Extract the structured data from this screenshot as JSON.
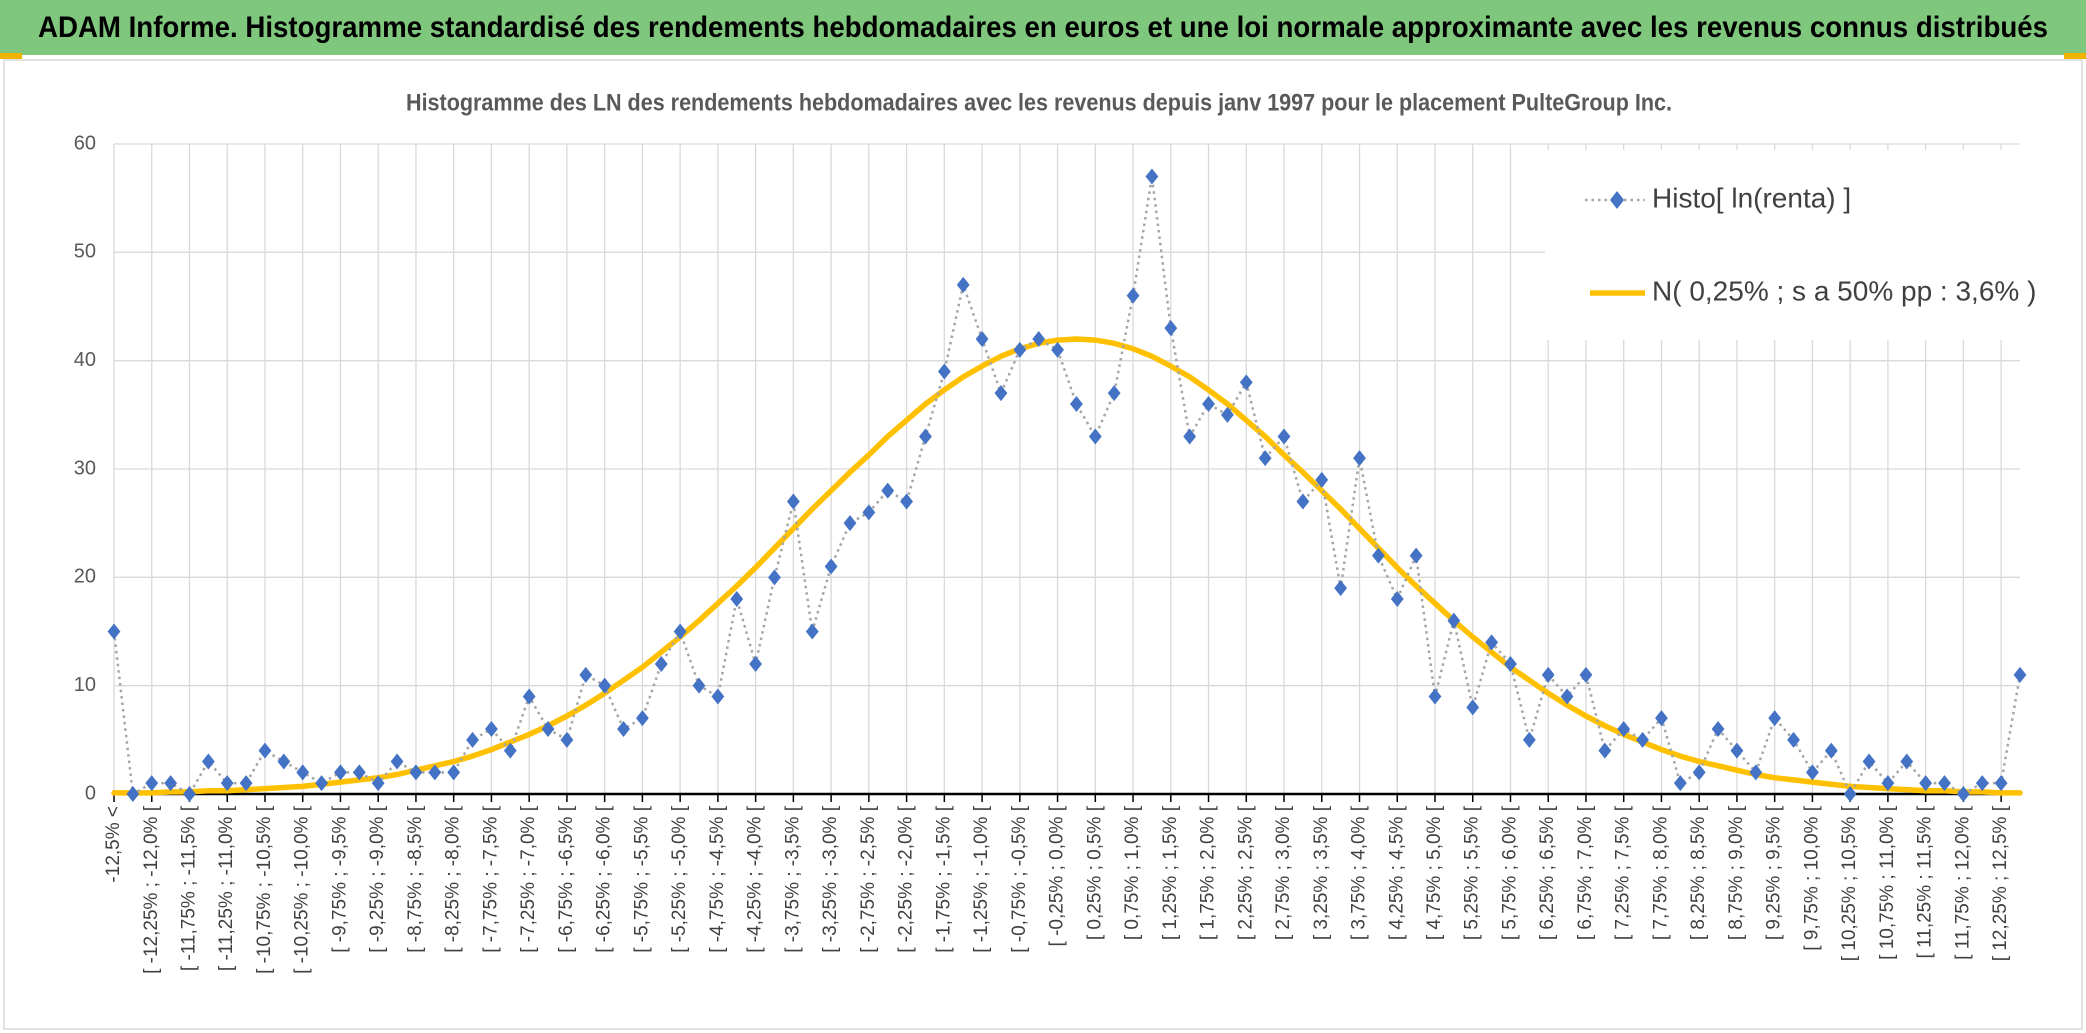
{
  "header": {
    "title": "ADAM Informe. Histogramme standardisé des rendements hebdomadaires en euros et une loi normale approximante avec les revenus connus distribués"
  },
  "chart_data": {
    "type": "line",
    "title": "Histogramme des LN des rendements hebdomadaires avec les revenus depuis janv 1997 pour le placement PulteGroup Inc.",
    "categories": [
      "-12,5% <",
      null,
      "[ -12,25% ; -12,0% [",
      null,
      "[ -11,75% ; -11,5% [",
      null,
      "[ -11,25% ; -11,0% [",
      null,
      "[ -10,75% ; -10,5% [",
      null,
      "[ -10,25% ; -10,0% [",
      null,
      "[ -9,75% ; -9,5% [",
      null,
      "[ -9,25% ; -9,0% [",
      null,
      "[ -8,75% ; -8,5% [",
      null,
      "[ -8,25% ; -8,0% [",
      null,
      "[ -7,75% ; -7,5% [",
      null,
      "[ -7,25% ; -7,0% [",
      null,
      "[ -6,75% ; -6,5% [",
      null,
      "[ -6,25% ; -6,0% [",
      null,
      "[ -5,75% ; -5,5% [",
      null,
      "[ -5,25% ; -5,0% [",
      null,
      "[ -4,75% ; -4,5% [",
      null,
      "[ -4,25% ; -4,0% [",
      null,
      "[ -3,75% ; -3,5% [",
      null,
      "[ -3,25% ; -3,0% [",
      null,
      "[ -2,75% ; -2,5% [",
      null,
      "[ -2,25% ; -2,0% [",
      null,
      "[ -1,75% ; -1,5% [",
      null,
      "[ -1,25% ; -1,0% [",
      null,
      "[ -0,75% ; -0,5% [",
      null,
      "[ -0,25% ; 0,0% [",
      null,
      "[ 0,25% ; 0,5% [",
      null,
      "[ 0,75% ; 1,0% [",
      null,
      "[ 1,25% ; 1,5% [",
      null,
      "[ 1,75% ; 2,0% [",
      null,
      "[ 2,25% ; 2,5% [",
      null,
      "[ 2,75% ; 3,0% [",
      null,
      "[ 3,25% ; 3,5% [",
      null,
      "[ 3,75% ; 4,0% [",
      null,
      "[ 4,25% ; 4,5% [",
      null,
      "[ 4,75% ; 5,0% [",
      null,
      "[ 5,25% ; 5,5% [",
      null,
      "[ 5,75% ; 6,0% [",
      null,
      "[ 6,25% ; 6,5% [",
      null,
      "[ 6,75% ; 7,0% [",
      null,
      "[ 7,25% ; 7,5% [",
      null,
      "[ 7,75% ; 8,0% [",
      null,
      "[ 8,25% ; 8,5% [",
      null,
      "[ 8,75% ; 9,0% [",
      null,
      "[ 9,25% ; 9,5% [",
      null,
      "[ 9,75% ; 10,0% [",
      null,
      "[ 10,25% ; 10,5% [",
      null,
      "[ 10,75% ; 11,0% [",
      null,
      "[ 11,25% ; 11,5% [",
      null,
      "[ 11,75% ; 12,0% [",
      null,
      "[ 12,25% ; 12,5% [",
      null
    ],
    "series": [
      {
        "name": "Histo[ ln(renta) ]",
        "color": "#4472c4",
        "marker": "diamond",
        "values": [
          15,
          0,
          1,
          1,
          0,
          3,
          1,
          1,
          4,
          3,
          2,
          1,
          2,
          2,
          1,
          3,
          2,
          2,
          2,
          5,
          6,
          4,
          9,
          6,
          5,
          11,
          10,
          6,
          7,
          12,
          15,
          10,
          9,
          18,
          12,
          20,
          27,
          15,
          21,
          25,
          26,
          28,
          27,
          33,
          39,
          47,
          42,
          37,
          41,
          42,
          41,
          36,
          33,
          37,
          46,
          57,
          43,
          33,
          36,
          35,
          38,
          31,
          33,
          27,
          29,
          19,
          31,
          22,
          18,
          22,
          9,
          16,
          8,
          14,
          12,
          5,
          11,
          9,
          11,
          4,
          6,
          5,
          7,
          1,
          2,
          6,
          4,
          2,
          7,
          5,
          2,
          4,
          0,
          3,
          1,
          3,
          1,
          1,
          0,
          1,
          1,
          11
        ]
      },
      {
        "name": "N( 0,25% ; s a 50% pp : 3,6% )",
        "color": "#ffc000",
        "values": [
          0.1,
          0.1,
          0.1,
          0.2,
          0.2,
          0.3,
          0.3,
          0.4,
          0.5,
          0.6,
          0.7,
          0.9,
          1.1,
          1.3,
          1.5,
          1.8,
          2.2,
          2.6,
          3.0,
          3.5,
          4.1,
          4.8,
          5.5,
          6.3,
          7.2,
          8.2,
          9.3,
          10.5,
          11.7,
          13.1,
          14.5,
          16.0,
          17.6,
          19.2,
          20.9,
          22.7,
          24.5,
          26.3,
          28.0,
          29.7,
          31.3,
          33.0,
          34.5,
          36.0,
          37.3,
          38.5,
          39.5,
          40.4,
          41.1,
          41.6,
          41.9,
          42,
          41.9,
          41.6,
          41.1,
          40.4,
          39.5,
          38.5,
          37.3,
          36.0,
          34.5,
          33.0,
          31.3,
          29.7,
          28.0,
          26.3,
          24.5,
          22.7,
          20.9,
          19.2,
          17.6,
          16.0,
          14.5,
          13.1,
          11.7,
          10.5,
          9.3,
          8.2,
          7.2,
          6.3,
          5.5,
          4.8,
          4.1,
          3.5,
          3.0,
          2.6,
          2.2,
          1.8,
          1.5,
          1.3,
          1.1,
          0.9,
          0.7,
          0.6,
          0.5,
          0.4,
          0.3,
          0.3,
          0.2,
          0.2,
          0.1,
          0.1
        ]
      }
    ],
    "ylim": [
      0,
      60
    ],
    "yticks": [
      0,
      10,
      20,
      30,
      40,
      50,
      60
    ],
    "grid": true,
    "legend": "upper right"
  }
}
